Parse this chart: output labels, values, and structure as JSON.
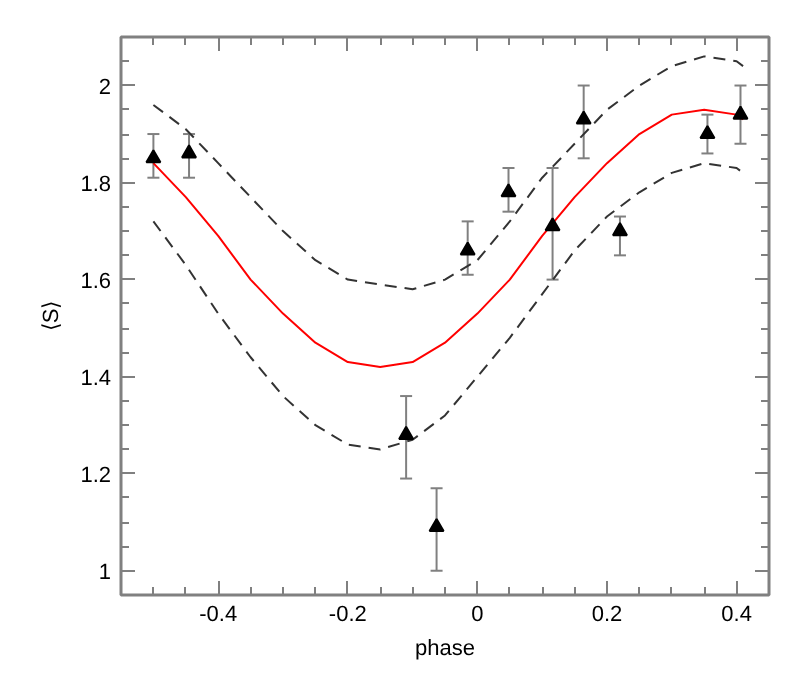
{
  "chart_data": {
    "type": "scatter",
    "xlabel": "phase",
    "ylabel": "⟨S⟩",
    "xlim": [
      -0.55,
      0.45
    ],
    "ylim": [
      0.95,
      2.1
    ],
    "xticks": [
      {
        "value": -0.5,
        "label": null
      },
      {
        "value": -0.45,
        "label": null
      },
      -0.4,
      {
        "value": -0.35,
        "label": null
      },
      {
        "value": -0.3,
        "label": null
      },
      {
        "value": -0.25,
        "label": null
      },
      -0.2,
      {
        "value": -0.15,
        "label": null
      },
      {
        "value": -0.1,
        "label": null
      },
      {
        "value": -0.05,
        "label": null
      },
      0,
      {
        "value": 0.05,
        "label": null
      },
      {
        "value": 0.1,
        "label": null
      },
      {
        "value": 0.15,
        "label": null
      },
      0.2,
      {
        "value": 0.25,
        "label": null
      },
      {
        "value": 0.3,
        "label": null
      },
      {
        "value": 0.35,
        "label": null
      },
      0.4
    ],
    "yticks": [
      1,
      {
        "value": 1.05,
        "label": null
      },
      {
        "value": 1.1,
        "label": null
      },
      {
        "value": 1.15,
        "label": null
      },
      1.2,
      {
        "value": 1.25,
        "label": null
      },
      {
        "value": 1.3,
        "label": null
      },
      {
        "value": 1.35,
        "label": null
      },
      1.4,
      {
        "value": 1.45,
        "label": null
      },
      {
        "value": 1.5,
        "label": null
      },
      {
        "value": 1.55,
        "label": null
      },
      1.6,
      {
        "value": 1.65,
        "label": null
      },
      {
        "value": 1.7,
        "label": null
      },
      {
        "value": 1.75,
        "label": null
      },
      1.8,
      {
        "value": 1.85,
        "label": null
      },
      {
        "value": 1.9,
        "label": null
      },
      {
        "value": 1.95,
        "label": null
      },
      2,
      {
        "value": 2.05,
        "label": null
      }
    ],
    "grid": false,
    "series": [
      {
        "type": "line",
        "color": "#ff0000",
        "line_style": "solid",
        "x": [
          -0.5,
          -0.45,
          -0.4,
          -0.35,
          -0.3,
          -0.25,
          -0.2,
          -0.15,
          -0.1,
          -0.05,
          0,
          0.05,
          0.1,
          0.15,
          0.2,
          0.25,
          0.3,
          0.35,
          0.4,
          0.41
        ],
        "values": [
          1.84,
          1.77,
          1.69,
          1.6,
          1.53,
          1.47,
          1.43,
          1.42,
          1.43,
          1.47,
          1.53,
          1.6,
          1.69,
          1.77,
          1.84,
          1.9,
          1.94,
          1.95,
          1.94,
          1.93
        ]
      },
      {
        "type": "line",
        "color": "#333333",
        "line_style": "dashed",
        "x": [
          -0.5,
          -0.45,
          -0.4,
          -0.35,
          -0.3,
          -0.25,
          -0.2,
          -0.15,
          -0.1,
          -0.05,
          0,
          0.05,
          0.1,
          0.15,
          0.2,
          0.25,
          0.3,
          0.35,
          0.4,
          0.41
        ],
        "values": [
          1.96,
          1.91,
          1.84,
          1.77,
          1.7,
          1.64,
          1.6,
          1.59,
          1.58,
          1.6,
          1.64,
          1.72,
          1.81,
          1.88,
          1.95,
          2.0,
          2.04,
          2.06,
          2.05,
          2.04
        ]
      },
      {
        "type": "line",
        "color": "#333333",
        "line_style": "dashed",
        "x": [
          -0.5,
          -0.45,
          -0.4,
          -0.35,
          -0.3,
          -0.25,
          -0.2,
          -0.15,
          -0.1,
          -0.05,
          0,
          0.05,
          0.1,
          0.15,
          0.2,
          0.25,
          0.3,
          0.35,
          0.4,
          0.41
        ],
        "values": [
          1.72,
          1.63,
          1.53,
          1.44,
          1.36,
          1.3,
          1.26,
          1.25,
          1.27,
          1.32,
          1.4,
          1.48,
          1.57,
          1.66,
          1.73,
          1.78,
          1.82,
          1.84,
          1.83,
          1.82
        ]
      },
      {
        "color": "#000000",
        "marker": "triangle",
        "x": [
          -0.5,
          -0.445,
          -0.11,
          -0.063,
          -0.015,
          0.048,
          0.116,
          0.164,
          0.22,
          0.355,
          0.406
        ],
        "values": [
          1.85,
          1.86,
          1.28,
          1.09,
          1.66,
          1.78,
          1.71,
          1.93,
          1.7,
          1.9,
          1.94
        ],
        "errors": [
          [
            1.81,
            1.9
          ],
          [
            1.81,
            1.9
          ],
          [
            1.19,
            1.36
          ],
          [
            1.0,
            1.17
          ],
          [
            1.61,
            1.72
          ],
          [
            1.74,
            1.83
          ],
          [
            1.6,
            1.83
          ],
          [
            1.85,
            2.0
          ],
          [
            1.65,
            1.73
          ],
          [
            1.86,
            1.94
          ],
          [
            1.88,
            2.0
          ]
        ]
      }
    ]
  }
}
